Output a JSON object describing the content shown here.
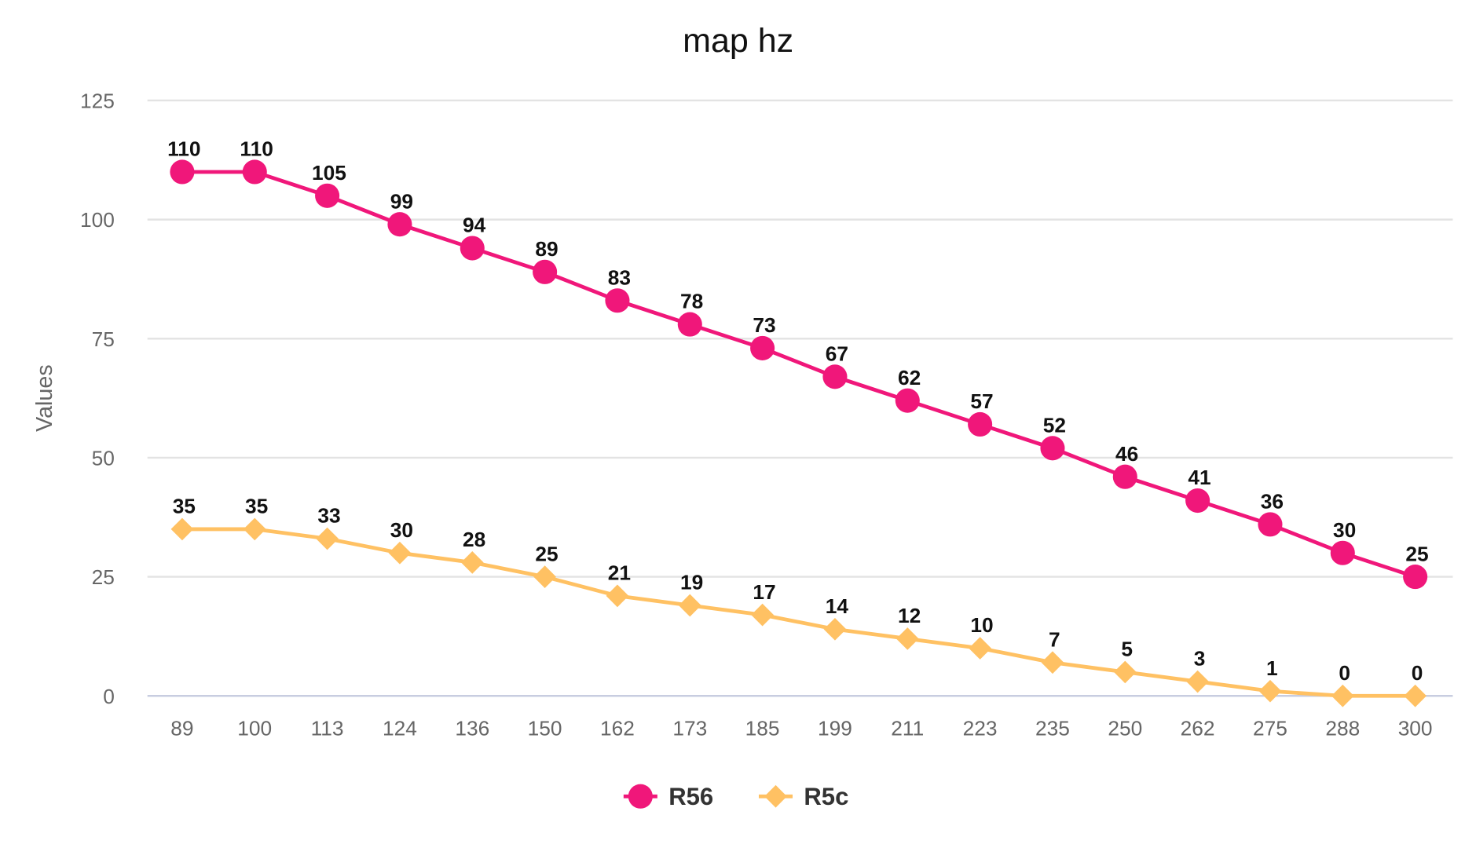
{
  "chart_data": {
    "type": "line",
    "title": "map hz",
    "xlabel": "",
    "ylabel": "Values",
    "ylim": [
      0,
      125
    ],
    "yticks": [
      0,
      25,
      50,
      75,
      100,
      125
    ],
    "grid": true,
    "legend_position": "bottom-center",
    "categories": [
      "89",
      "100",
      "113",
      "124",
      "136",
      "150",
      "162",
      "173",
      "185",
      "199",
      "211",
      "223",
      "235",
      "250",
      "262",
      "275",
      "288",
      "300"
    ],
    "series": [
      {
        "name": "R56",
        "color": "#F0177A",
        "marker": "circle",
        "values": [
          110,
          110,
          105,
          99,
          94,
          89,
          83,
          78,
          73,
          67,
          62,
          57,
          52,
          46,
          41,
          36,
          30,
          25
        ]
      },
      {
        "name": "R5c",
        "color": "#FFC163",
        "marker": "diamond",
        "values": [
          35,
          35,
          33,
          30,
          28,
          25,
          21,
          19,
          17,
          14,
          12,
          10,
          7,
          5,
          3,
          1,
          0,
          0
        ]
      }
    ]
  }
}
